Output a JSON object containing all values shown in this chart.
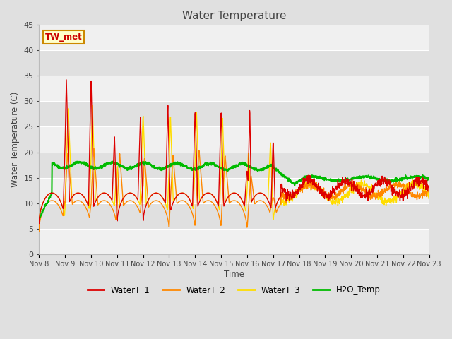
{
  "title": "Water Temperature",
  "ylabel": "Water Temperature (C)",
  "xlabel": "Time",
  "annotation": "TW_met",
  "ylim": [
    0,
    45
  ],
  "yticks": [
    0,
    5,
    10,
    15,
    20,
    25,
    30,
    35,
    40,
    45
  ],
  "x_labels": [
    "Nov 8",
    "Nov 9",
    "Nov 10",
    "Nov 11",
    "Nov 12",
    "Nov 13",
    "Nov 14",
    "Nov 15",
    "Nov 16",
    "Nov 17",
    "Nov 18",
    "Nov 19",
    "Nov 20",
    "Nov 21",
    "Nov 22",
    "Nov 23"
  ],
  "colors": {
    "WaterT_1": "#dd0000",
    "WaterT_2": "#ff8800",
    "WaterT_3": "#ffdd00",
    "H2O_Temp": "#00bb00"
  },
  "fig_bg": "#e0e0e0",
  "plot_bg_light": "#f0f0f0",
  "plot_bg_dark": "#e0e0e0",
  "grid_color": "#ffffff",
  "legend_labels": [
    "WaterT_1",
    "WaterT_2",
    "WaterT_3",
    "H2O_Temp"
  ],
  "figsize": [
    6.4,
    4.8
  ],
  "dpi": 100
}
